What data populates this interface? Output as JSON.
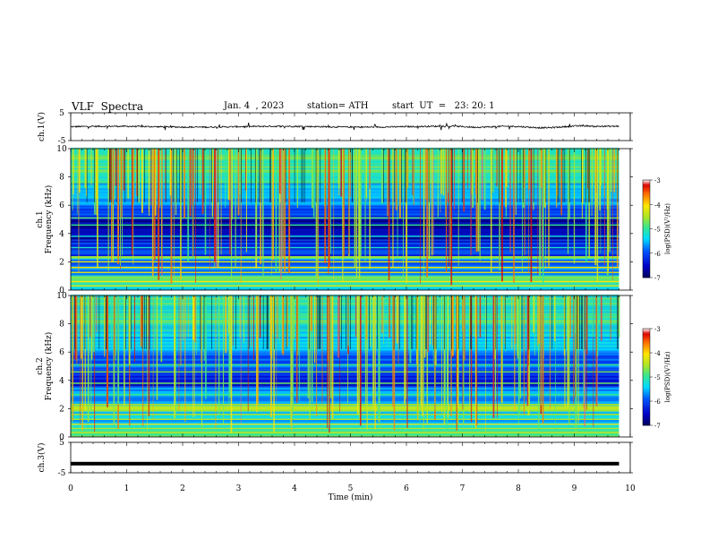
{
  "header": {
    "title": "VLF  Spectra",
    "date": "Jan. 4  , 2023",
    "station": "station= ATH",
    "start": "start  UT  =   23: 20: 1"
  },
  "chart_data": [
    {
      "type": "line",
      "panel": "ch1-waveform",
      "ylabel": "ch.1(V)",
      "ylim": [
        -5,
        5
      ],
      "ytick_labels": [
        "5",
        "-5"
      ],
      "x_range_min": [
        0,
        9.8
      ],
      "description_values": "noisy waveform near 0 V with small spikes up to about +/-1.5 V"
    },
    {
      "type": "heatmap",
      "panel": "ch1-spectrogram",
      "ylabel": "ch.1\nFrequency (kHz)",
      "ylabel_lines": [
        "ch.1",
        "Frequency (kHz)"
      ],
      "ylim": [
        0,
        10
      ],
      "ytick_labels": [
        "0",
        "2",
        "4",
        "6",
        "8",
        "10"
      ],
      "colorbar": {
        "label": "log(PSD)(V²/Hz)",
        "range": [
          -7,
          -3
        ],
        "tick_labels": [
          "-3",
          "-4",
          "-5",
          "-6",
          "-7"
        ]
      },
      "bands_khz": [
        {
          "from": 0,
          "to": 0.5,
          "level": -5.2
        },
        {
          "from": 0.5,
          "to": 1.0,
          "level": -5.0
        },
        {
          "from": 1.0,
          "to": 2.2,
          "level": -5.8
        },
        {
          "from": 2.2,
          "to": 2.4,
          "level": -4.8
        },
        {
          "from": 2.4,
          "to": 3.5,
          "level": -6.2
        },
        {
          "from": 3.5,
          "to": 5.0,
          "level": -6.7
        },
        {
          "from": 5.0,
          "to": 6.0,
          "level": -6.0
        },
        {
          "from": 6.0,
          "to": 7.5,
          "level": -5.5
        },
        {
          "from": 7.5,
          "to": 10,
          "level": -5.0
        }
      ]
    },
    {
      "type": "heatmap",
      "panel": "ch2-spectrogram",
      "ylabel": "ch.2\nFrequency (kHz)",
      "ylabel_lines": [
        "ch.2",
        "Frequency (kHz)"
      ],
      "ylim": [
        0,
        10
      ],
      "ytick_labels": [
        "0",
        "2",
        "4",
        "6",
        "8",
        "10"
      ],
      "colorbar": {
        "label": "log(PSD)(V²/Hz)",
        "range": [
          -7,
          -3
        ],
        "tick_labels": [
          "-3",
          "-4",
          "-5",
          "-6",
          "-7"
        ]
      },
      "bands_khz": [
        {
          "from": 0,
          "to": 0.5,
          "level": -5.0
        },
        {
          "from": 0.5,
          "to": 1.8,
          "level": -5.4
        },
        {
          "from": 1.8,
          "to": 2.2,
          "level": -4.6
        },
        {
          "from": 2.2,
          "to": 3.5,
          "level": -5.6
        },
        {
          "from": 3.5,
          "to": 4.8,
          "level": -6.3
        },
        {
          "from": 4.8,
          "to": 6.0,
          "level": -5.9
        },
        {
          "from": 6.0,
          "to": 7.5,
          "level": -5.4
        },
        {
          "from": 7.5,
          "to": 10,
          "level": -5.1
        }
      ]
    },
    {
      "type": "line",
      "panel": "ch3-waveform",
      "ylabel": "ch.3(V)",
      "ylim": [
        -5,
        5
      ],
      "ytick_labels": [
        "5",
        "-5"
      ],
      "constant_value": -2
    }
  ],
  "xaxis": {
    "xlabel": "Time  (min)",
    "xlim": [
      0,
      10
    ],
    "tick_labels": [
      "0",
      "1",
      "2",
      "3",
      "4",
      "5",
      "6",
      "7",
      "8",
      "9",
      "10"
    ]
  }
}
